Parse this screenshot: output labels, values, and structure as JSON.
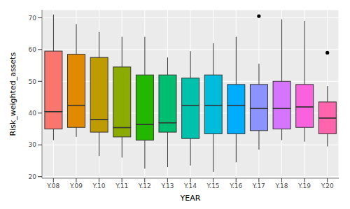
{
  "chart_data": {
    "type": "box",
    "x_label": "YEAR",
    "y_label": "Risk_weighted_assets",
    "categories": [
      "Y.08",
      "Y.09",
      "Y.10",
      "Y.11",
      "Y.12",
      "Y.13",
      "Y.14",
      "Y.15",
      "Y.16",
      "Y.17",
      "Y.18",
      "Y.19",
      "Y.20"
    ],
    "min": [
      31.5,
      32.5,
      26.5,
      26,
      22.5,
      23,
      23.5,
      21.5,
      24.5,
      28.5,
      31.5,
      31,
      29.5
    ],
    "q1": [
      35,
      35.5,
      34,
      32.5,
      31.5,
      34,
      32,
      33.5,
      33.5,
      34.5,
      35,
      35.5,
      33.5
    ],
    "median": [
      40.5,
      42.5,
      38,
      35.5,
      36.5,
      37,
      42.5,
      42.5,
      42.5,
      41.5,
      41.5,
      42,
      38.5
    ],
    "q3": [
      59.5,
      58.5,
      57.5,
      54.5,
      52,
      52,
      51,
      52,
      49,
      49,
      50,
      49,
      43.5
    ],
    "max": [
      71,
      68,
      65.5,
      64,
      64,
      57.5,
      59.5,
      62,
      64,
      55.5,
      69.5,
      69,
      48.5
    ],
    "outliers": [
      null,
      null,
      null,
      null,
      null,
      null,
      null,
      null,
      null,
      70.5,
      null,
      null,
      59
    ],
    "colors": [
      "#F8766D",
      "#E18A00",
      "#BE9C00",
      "#8CAB00",
      "#24B700",
      "#00BE70",
      "#00C1AB",
      "#00BBDA",
      "#00ACFC",
      "#8B93FF",
      "#D575FE",
      "#F962DD",
      "#FF65AC"
    ],
    "ylim": [
      19.5,
      72.5
    ],
    "yticks": [
      20,
      30,
      40,
      50,
      60,
      70
    ],
    "grid": true
  }
}
